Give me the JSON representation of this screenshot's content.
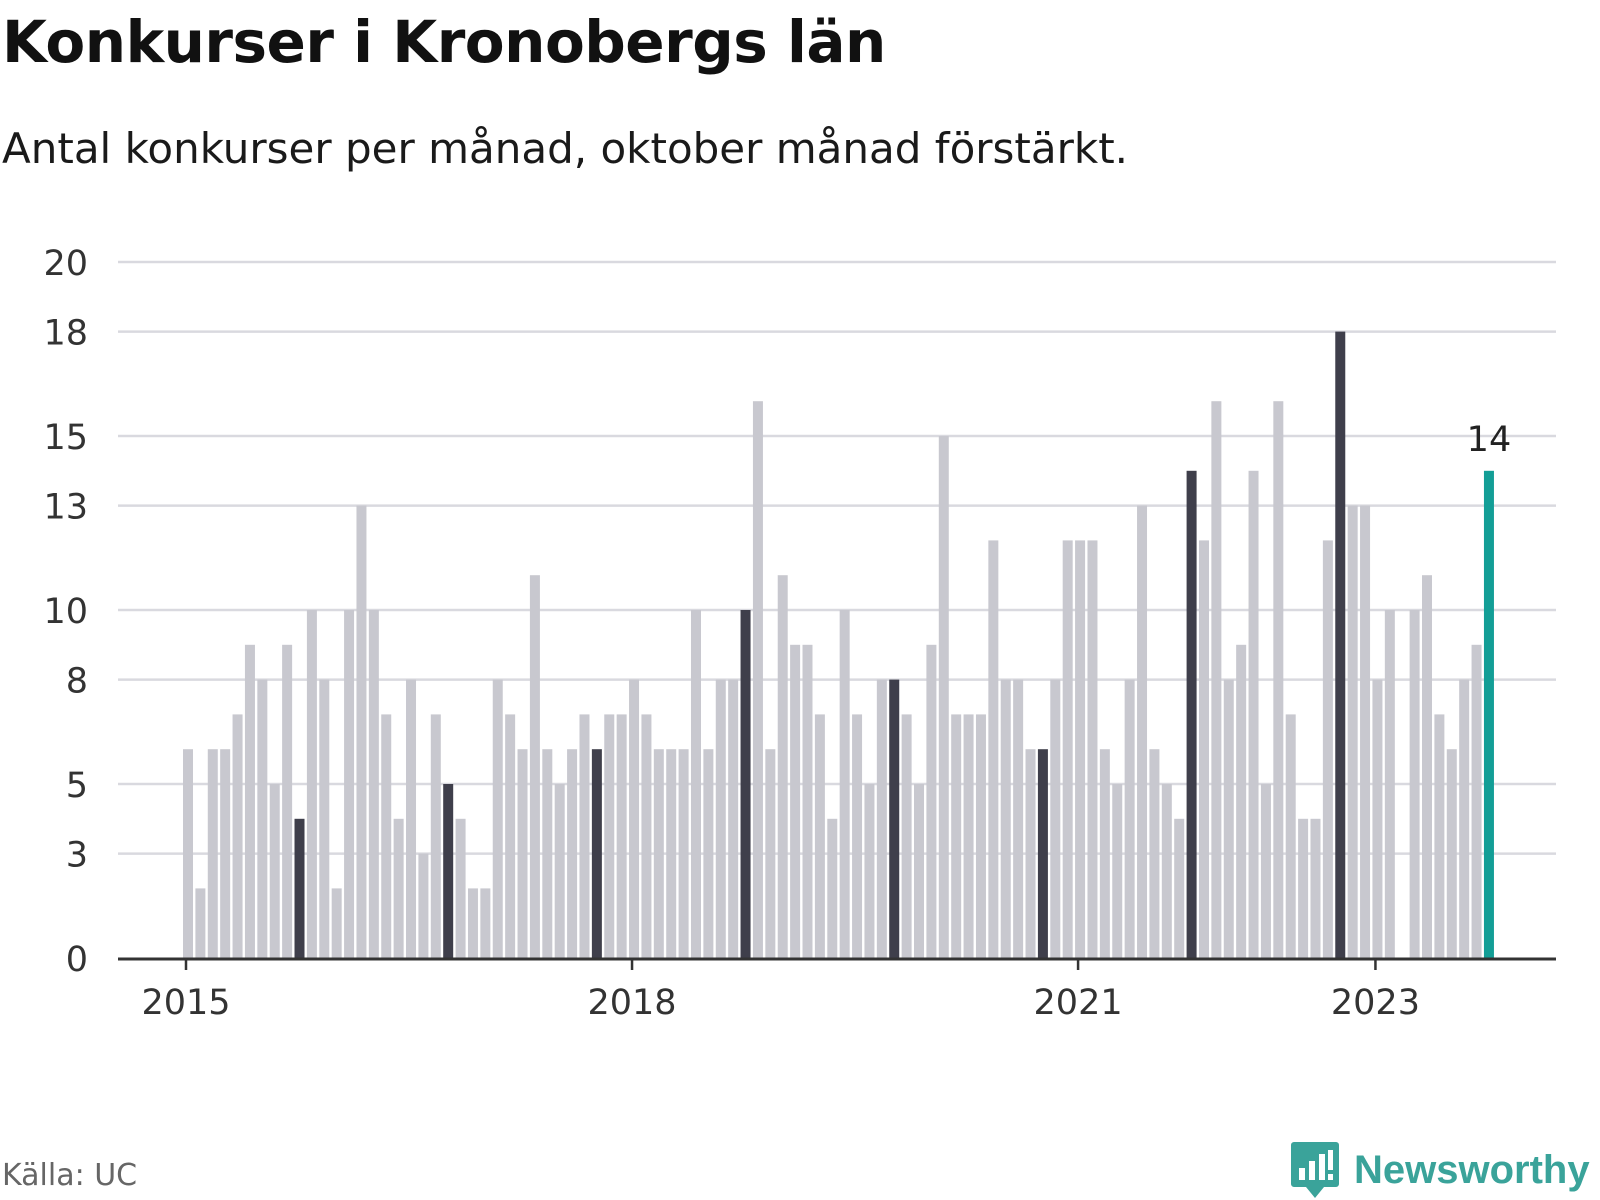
{
  "header": {
    "title": "Konkurser i Kronobergs län",
    "subtitle": "Antal konkurser per månad, oktober månad förstärkt."
  },
  "footer": {
    "source": "Källa: UC",
    "brand": "Newsworthy",
    "brand_icon": "newsworthy-logo-icon"
  },
  "colors": {
    "bar_default": "#c8c8cf",
    "bar_october": "#3f3f4b",
    "bar_latest": "#139e96",
    "grid": "#d9d9df",
    "axis": "#333333",
    "brand": "#3aa39a"
  },
  "chart_data": {
    "type": "bar",
    "title": "Konkurser i Kronobergs län",
    "subtitle": "Antal konkurser per månad, oktober månad förstärkt.",
    "xlabel": "",
    "ylabel": "",
    "ylim": [
      0,
      20
    ],
    "yticks": [
      0,
      3,
      5,
      8,
      10,
      13,
      15,
      18,
      20
    ],
    "grid": true,
    "start": "2015-01",
    "x_tick_labels": [
      {
        "label": "2015",
        "index": 0
      },
      {
        "label": "2018",
        "index": 36
      },
      {
        "label": "2021",
        "index": 72
      },
      {
        "label": "2023",
        "index": 96
      }
    ],
    "highlight_month": 10,
    "data_labels": [
      {
        "index": 105,
        "text": "14"
      }
    ],
    "values": [
      6,
      2,
      6,
      6,
      7,
      9,
      8,
      5,
      9,
      4,
      10,
      8,
      2,
      10,
      13,
      10,
      7,
      4,
      8,
      3,
      7,
      5,
      4,
      2,
      2,
      8,
      7,
      6,
      11,
      6,
      5,
      6,
      7,
      6,
      7,
      7,
      8,
      7,
      6,
      6,
      6,
      10,
      6,
      8,
      8,
      10,
      16,
      6,
      11,
      9,
      9,
      7,
      4,
      10,
      7,
      5,
      8,
      8,
      7,
      5,
      9,
      15,
      7,
      7,
      7,
      12,
      8,
      8,
      6,
      6,
      8,
      12,
      12,
      12,
      6,
      5,
      8,
      13,
      6,
      5,
      4,
      14,
      12,
      16,
      8,
      9,
      14,
      5,
      16,
      7,
      4,
      4,
      12,
      18,
      13,
      13,
      8,
      10,
      0,
      10,
      11,
      7,
      6,
      8,
      9,
      14
    ]
  }
}
